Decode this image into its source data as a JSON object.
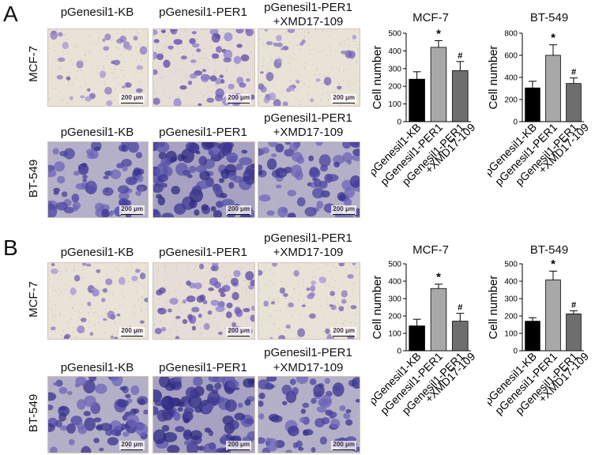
{
  "panels": [
    {
      "letter": "A",
      "groups": [
        "pGenesil1-KB",
        "pGenesil1-PER1",
        "pGenesil1-PER1",
        "+XMD17-109"
      ],
      "rows": [
        {
          "cell_line": "MCF-7",
          "scale_label": "200 μm",
          "tone": "light"
        },
        {
          "cell_line": "BT-549",
          "scale_label": "200 μm",
          "tone": "dark"
        }
      ]
    },
    {
      "letter": "B",
      "groups": [
        "pGenesil1-KB",
        "pGenesil1-PER1",
        "pGenesil1-PER1",
        "+XMD17-109"
      ],
      "rows": [
        {
          "cell_line": "MCF-7",
          "scale_label": "200 μm",
          "tone": "light"
        },
        {
          "cell_line": "BT-549",
          "scale_label": "200 μm",
          "tone": "dark"
        }
      ]
    }
  ],
  "chart_data": [
    {
      "type": "bar",
      "panel": "A",
      "title": "MCF-7",
      "ylabel": "Cell number",
      "categories": [
        "pGenesil1-KB",
        "pGenesil1-PER1",
        "pGenesil1-PER1\n+XMD17-109"
      ],
      "values": [
        240,
        420,
        288
      ],
      "errors": [
        42,
        38,
        52
      ],
      "markers": [
        "",
        "*",
        "#"
      ],
      "ylim": [
        0,
        500
      ],
      "yticks": [
        0,
        100,
        200,
        300,
        400,
        500
      ],
      "colors": [
        "#000000",
        "#a8a8a8",
        "#6e6e6e"
      ]
    },
    {
      "type": "bar",
      "panel": "A",
      "title": "BT-549",
      "ylabel": "Cell number",
      "categories": [
        "pGenesil1-KB",
        "pGenesil1-PER1",
        "pGenesil1-PER1\n+XMD17-109"
      ],
      "values": [
        305,
        600,
        345
      ],
      "errors": [
        60,
        95,
        50
      ],
      "markers": [
        "",
        "*",
        "#"
      ],
      "ylim": [
        0,
        800
      ],
      "yticks": [
        0,
        200,
        400,
        600,
        800
      ],
      "colors": [
        "#000000",
        "#a8a8a8",
        "#6e6e6e"
      ]
    },
    {
      "type": "bar",
      "panel": "B",
      "title": "MCF-7",
      "ylabel": "Cell number",
      "categories": [
        "pGenesil1-KB",
        "pGenesil1-PER1",
        "pGenesil1-PER1\n+XMD17-109"
      ],
      "values": [
        143,
        358,
        170
      ],
      "errors": [
        38,
        25,
        45
      ],
      "markers": [
        "",
        "*",
        "#"
      ],
      "ylim": [
        0,
        500
      ],
      "yticks": [
        0,
        100,
        200,
        300,
        400,
        500
      ],
      "colors": [
        "#000000",
        "#a8a8a8",
        "#6e6e6e"
      ]
    },
    {
      "type": "bar",
      "panel": "B",
      "title": "BT-549",
      "ylabel": "Cell number",
      "categories": [
        "pGenesil1-KB",
        "pGenesil1-PER1",
        "pGenesil1-PER1\n+XMD17-109"
      ],
      "values": [
        170,
        408,
        212
      ],
      "errors": [
        20,
        50,
        18
      ],
      "markers": [
        "",
        "*",
        "#"
      ],
      "ylim": [
        0,
        500
      ],
      "yticks": [
        0,
        100,
        200,
        300,
        400,
        500
      ],
      "colors": [
        "#000000",
        "#a8a8a8",
        "#6e6e6e"
      ]
    }
  ]
}
